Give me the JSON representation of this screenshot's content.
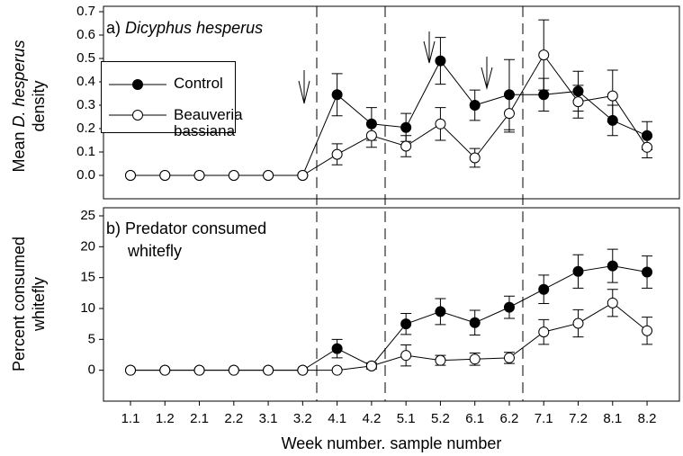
{
  "chart_data": [
    {
      "type": "line",
      "panel_label": "a)",
      "title": "Dicyphus hesperus",
      "ylabel": {
        "prefix": "Mean",
        "italic": "D. hesperus",
        "line2": "density"
      },
      "ylim": [
        -0.1,
        0.7
      ],
      "yticks": [
        {
          "value": 0,
          "label": "0.0"
        },
        0.1,
        0.2,
        0.3,
        0.4,
        0.5,
        0.6,
        0.7
      ],
      "series": [
        {
          "name": "Control",
          "color": "#000000",
          "marker_fill": "#000000",
          "values": [
            0,
            0,
            0,
            0,
            0,
            0,
            0.345,
            0.22,
            0.205,
            0.49,
            0.3,
            0.345,
            0.345,
            0.36,
            0.235,
            0.17
          ],
          "errors": [
            0,
            0,
            0,
            0,
            0,
            0,
            0.09,
            0.07,
            0.06,
            0.1,
            0.065,
            0.15,
            0.07,
            0.085,
            0.065,
            0.06
          ]
        },
        {
          "name": "Beauveria bassiana",
          "color": "#000000",
          "marker_fill": "#ffffff",
          "values": [
            0,
            0,
            0,
            0,
            0,
            0,
            0.09,
            0.17,
            0.125,
            0.22,
            0.075,
            0.265,
            0.515,
            0.315,
            0.34,
            0.12
          ],
          "errors": [
            0,
            0,
            0,
            0,
            0,
            0,
            0.045,
            0.05,
            0.045,
            0.07,
            0.04,
            0.08,
            0.15,
            0.07,
            0.11,
            0.045
          ]
        }
      ]
    },
    {
      "type": "line",
      "panel_label": "b)",
      "title": [
        "Predator consumed",
        "whitefly"
      ],
      "ylabel": [
        "Percent consumed",
        "whitefly"
      ],
      "xlabel": "Week number. sample number",
      "categories": [
        "1.1",
        "1.2",
        "2.1",
        "2.2",
        "3.1",
        "3.2",
        "4.1",
        "4.2",
        "5.1",
        "5.2",
        "6.1",
        "6.2",
        "7.1",
        "7.2",
        "8.1",
        "8.2"
      ],
      "ylim": [
        -5,
        25
      ],
      "yticks": [
        0,
        5,
        10,
        15,
        20,
        25
      ],
      "series": [
        {
          "name": "Control",
          "color": "#000000",
          "marker_fill": "#000000",
          "values": [
            0,
            0,
            0,
            0,
            0,
            0,
            3.5,
            0.7,
            7.5,
            9.5,
            7.7,
            10.2,
            13.1,
            16.0,
            16.9,
            15.9
          ],
          "errors": [
            0,
            0,
            0,
            0,
            0,
            0,
            1.5,
            0.5,
            1.7,
            2.1,
            2.0,
            1.8,
            2.3,
            2.7,
            2.7,
            2.6
          ]
        },
        {
          "name": "Beauveria bassiana",
          "color": "#000000",
          "marker_fill": "#ffffff",
          "values": [
            0,
            0,
            0,
            0,
            0,
            0,
            0,
            0.7,
            2.4,
            1.6,
            1.8,
            2.0,
            6.2,
            7.6,
            10.9,
            6.4
          ],
          "errors": [
            0,
            0,
            0,
            0,
            0,
            0,
            0,
            0.3,
            1.7,
            0.8,
            1.0,
            0.9,
            2.0,
            2.2,
            2.2,
            2.2
          ]
        }
      ]
    }
  ]
}
